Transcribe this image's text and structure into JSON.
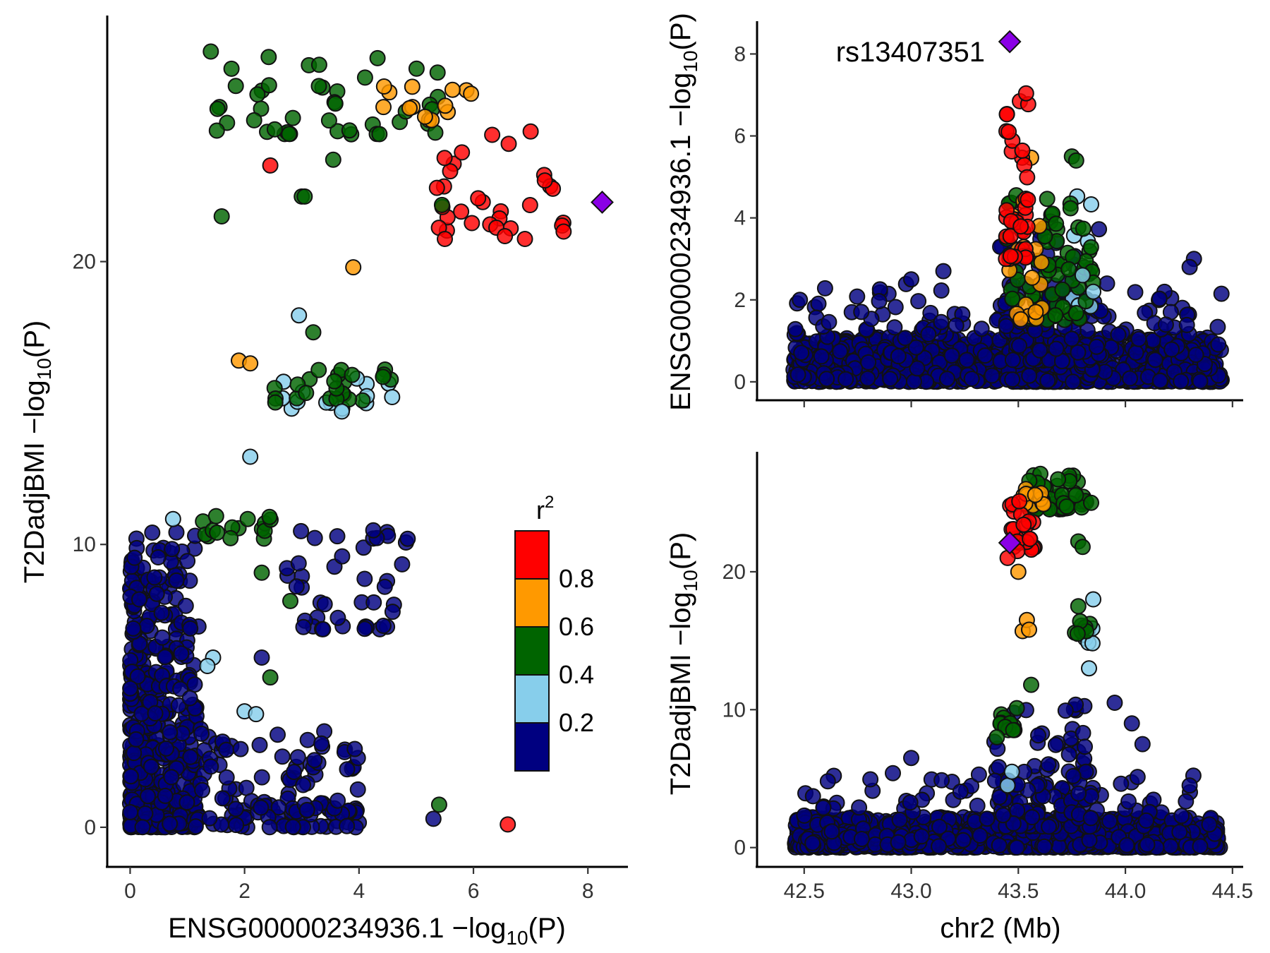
{
  "colors": {
    "r2_bins": [
      "#000080",
      "#87CEEB",
      "#006400",
      "#FF9900",
      "#FF0000"
    ],
    "lead": "#8A00E6"
  },
  "legend": {
    "title_base": "r",
    "title_sup": "2",
    "labels": [
      "0.2",
      "0.4",
      "0.6",
      "0.8"
    ]
  },
  "chart_data": [
    {
      "id": "scatter",
      "type": "scatter",
      "xlabel": {
        "main": "ENSG00000234936.1 −log",
        "sub": "10",
        "tail": "(P)"
      },
      "ylabel": {
        "main": "T2DadjBMI −log",
        "sub": "10",
        "tail": "(P)"
      },
      "xlim": [
        -0.4,
        8.7
      ],
      "ylim": [
        -1.4,
        28.7
      ],
      "xticks": [
        0,
        2,
        4,
        6,
        8
      ],
      "yticks": [
        0,
        10,
        20
      ],
      "bands": [
        {
          "r2": 0.1,
          "count": 420,
          "x": [
            0,
            1.2
          ],
          "y": [
            0,
            10.5
          ]
        },
        {
          "r2": 0.1,
          "count": 160,
          "x": [
            0.2,
            4.0
          ],
          "y": [
            0,
            3.5
          ]
        },
        {
          "r2": 0.1,
          "count": 40,
          "x": [
            2.6,
            4.9
          ],
          "y": [
            7.0,
            10.5
          ]
        },
        {
          "r2": 0.3,
          "count": 14,
          "x": [
            2.6,
            4.7
          ],
          "y": [
            14.8,
            16.0
          ]
        },
        {
          "r2": 0.5,
          "count": 45,
          "x": [
            1.2,
            5.5
          ],
          "y": [
            24.5,
            27.5
          ]
        },
        {
          "r2": 0.5,
          "count": 24,
          "x": [
            2.5,
            4.6
          ],
          "y": [
            15.0,
            16.3
          ]
        },
        {
          "r2": 0.5,
          "count": 16,
          "x": [
            1.1,
            2.6
          ],
          "y": [
            10.2,
            11.2
          ]
        },
        {
          "r2": 0.7,
          "count": 14,
          "x": [
            4.4,
            6.0
          ],
          "y": [
            25.0,
            26.5
          ]
        },
        {
          "r2": 0.9,
          "count": 28,
          "x": [
            5.3,
            7.6
          ],
          "y": [
            21.0,
            24.5
          ]
        }
      ],
      "points": [
        {
          "x": 1.6,
          "y": 21.6,
          "r2": 0.5
        },
        {
          "x": 3.0,
          "y": 22.3,
          "r2": 0.5
        },
        {
          "x": 3.05,
          "y": 22.3,
          "r2": 0.5
        },
        {
          "x": 3.55,
          "y": 23.6,
          "r2": 0.5
        },
        {
          "x": 2.45,
          "y": 23.4,
          "r2": 0.9
        },
        {
          "x": 3.9,
          "y": 19.8,
          "r2": 0.7
        },
        {
          "x": 2.95,
          "y": 18.1,
          "r2": 0.3
        },
        {
          "x": 3.2,
          "y": 17.5,
          "r2": 0.5
        },
        {
          "x": 1.9,
          "y": 16.5,
          "r2": 0.7
        },
        {
          "x": 2.1,
          "y": 16.4,
          "r2": 0.7
        },
        {
          "x": 3.7,
          "y": 14.7,
          "r2": 0.3
        },
        {
          "x": 2.1,
          "y": 13.1,
          "r2": 0.3
        },
        {
          "x": 0.75,
          "y": 10.9,
          "r2": 0.3
        },
        {
          "x": 1.45,
          "y": 6.0,
          "r2": 0.3
        },
        {
          "x": 1.35,
          "y": 5.7,
          "r2": 0.3
        },
        {
          "x": 2.0,
          "y": 4.1,
          "r2": 0.3
        },
        {
          "x": 2.2,
          "y": 4.0,
          "r2": 0.3
        },
        {
          "x": 2.45,
          "y": 5.3,
          "r2": 0.5
        },
        {
          "x": 2.3,
          "y": 9.0,
          "r2": 0.5
        },
        {
          "x": 2.8,
          "y": 8.0,
          "r2": 0.5
        },
        {
          "x": 4.25,
          "y": 10.5,
          "r2": 0.1
        },
        {
          "x": 4.85,
          "y": 10.2,
          "r2": 0.1
        },
        {
          "x": 4.45,
          "y": 8.5,
          "r2": 0.1
        },
        {
          "x": 2.3,
          "y": 6.0,
          "r2": 0.1
        },
        {
          "x": 5.4,
          "y": 0.8,
          "r2": 0.5
        },
        {
          "x": 5.3,
          "y": 0.3,
          "r2": 0.1
        },
        {
          "x": 6.6,
          "y": 0.1,
          "r2": 0.9
        },
        {
          "x": 7.0,
          "y": 24.6,
          "r2": 0.9
        },
        {
          "x": 6.4,
          "y": 21.2,
          "r2": 0.9
        },
        {
          "x": 6.55,
          "y": 20.9,
          "r2": 0.9
        },
        {
          "x": 6.9,
          "y": 20.8,
          "r2": 0.9
        },
        {
          "x": 5.5,
          "y": 20.8,
          "r2": 0.9
        },
        {
          "x": 5.45,
          "y": 22.0,
          "r2": 0.5
        }
      ],
      "lead": {
        "x": 8.25,
        "y": 22.1
      }
    },
    {
      "id": "locus_top",
      "type": "scatter",
      "xlabel": "",
      "ylabel": {
        "main": "ENSG00000234936.1 −log",
        "sub": "10",
        "tail": "(P)"
      },
      "xlim": [
        42.28,
        44.55
      ],
      "ylim": [
        -0.45,
        8.8
      ],
      "xticks": [
        42.5,
        43.0,
        43.5,
        44.0,
        44.5
      ],
      "yticks": [
        0,
        2,
        4,
        6,
        8
      ],
      "show_xtick_labels": false,
      "bands": [
        {
          "r2": 0.1,
          "count": 900,
          "x": [
            42.45,
            44.45
          ],
          "y": [
            0,
            1.1
          ]
        },
        {
          "r2": 0.1,
          "count": 240,
          "x": [
            42.45,
            44.45
          ],
          "y": [
            0,
            2.4
          ]
        },
        {
          "r2": 0.1,
          "count": 100,
          "x": [
            43.4,
            43.9
          ],
          "y": [
            0.5,
            3.8
          ]
        },
        {
          "r2": 0.3,
          "count": 10,
          "x": [
            43.75,
            43.85
          ],
          "y": [
            1.8,
            4.6
          ]
        },
        {
          "r2": 0.5,
          "count": 55,
          "x": [
            43.55,
            43.85
          ],
          "y": [
            1.5,
            4.6
          ]
        },
        {
          "r2": 0.5,
          "count": 12,
          "x": [
            43.43,
            43.5
          ],
          "y": [
            2.0,
            4.6
          ]
        },
        {
          "r2": 0.7,
          "count": 20,
          "x": [
            43.45,
            43.62
          ],
          "y": [
            1.5,
            6.0
          ]
        },
        {
          "r2": 0.9,
          "count": 38,
          "x": [
            43.44,
            43.55
          ],
          "y": [
            3.0,
            7.5
          ]
        }
      ],
      "points": [
        {
          "x": 42.48,
          "y": 2.0,
          "r2": 0.1
        },
        {
          "x": 44.32,
          "y": 3.0,
          "r2": 0.1
        },
        {
          "x": 44.3,
          "y": 2.8,
          "r2": 0.1
        },
        {
          "x": 43.0,
          "y": 2.5,
          "r2": 0.1
        },
        {
          "x": 43.15,
          "y": 2.7,
          "r2": 0.1
        },
        {
          "x": 43.75,
          "y": 5.5,
          "r2": 0.5
        },
        {
          "x": 43.77,
          "y": 5.4,
          "r2": 0.5
        },
        {
          "x": 43.85,
          "y": 2.2,
          "r2": 0.3
        },
        {
          "x": 43.8,
          "y": 2.6,
          "r2": 0.3
        }
      ],
      "lead": {
        "x": 43.46,
        "y": 8.3,
        "label": "rs13407351"
      }
    },
    {
      "id": "locus_bottom",
      "type": "scatter",
      "xlabel": "chr2 (Mb)",
      "ylabel": {
        "main": "T2DadjBMI −log",
        "sub": "10",
        "tail": "(P)"
      },
      "xlim": [
        42.28,
        44.55
      ],
      "ylim": [
        -1.4,
        28.7
      ],
      "xticks": [
        42.5,
        43.0,
        43.5,
        44.0,
        44.5
      ],
      "yticks": [
        0,
        10,
        20
      ],
      "show_xtick_labels": true,
      "bands": [
        {
          "r2": 0.1,
          "count": 900,
          "x": [
            42.45,
            44.45
          ],
          "y": [
            0,
            2.2
          ]
        },
        {
          "r2": 0.1,
          "count": 200,
          "x": [
            42.5,
            44.4
          ],
          "y": [
            0,
            5.5
          ]
        },
        {
          "r2": 0.1,
          "count": 110,
          "x": [
            43.38,
            43.85
          ],
          "y": [
            1.5,
            10.5
          ]
        },
        {
          "r2": 0.5,
          "count": 55,
          "x": [
            43.55,
            43.82
          ],
          "y": [
            24.5,
            27.2
          ]
        },
        {
          "r2": 0.5,
          "count": 12,
          "x": [
            43.4,
            43.5
          ],
          "y": [
            8.5,
            10.8
          ]
        },
        {
          "r2": 0.7,
          "count": 16,
          "x": [
            43.5,
            43.62
          ],
          "y": [
            24.8,
            26.0
          ]
        },
        {
          "r2": 0.9,
          "count": 24,
          "x": [
            43.45,
            43.58
          ],
          "y": [
            21.5,
            25.5
          ]
        },
        {
          "r2": 0.3,
          "count": 6,
          "x": [
            43.8,
            43.86
          ],
          "y": [
            14.8,
            16.2
          ]
        },
        {
          "r2": 0.5,
          "count": 8,
          "x": [
            43.76,
            43.84
          ],
          "y": [
            15.5,
            16.5
          ]
        }
      ],
      "points": [
        {
          "x": 43.45,
          "y": 21.0,
          "r2": 0.9
        },
        {
          "x": 43.5,
          "y": 20.0,
          "r2": 0.7
        },
        {
          "x": 43.52,
          "y": 15.7,
          "r2": 0.7
        },
        {
          "x": 43.54,
          "y": 16.5,
          "r2": 0.7
        },
        {
          "x": 43.55,
          "y": 15.8,
          "r2": 0.7
        },
        {
          "x": 43.78,
          "y": 22.2,
          "r2": 0.5
        },
        {
          "x": 43.8,
          "y": 21.8,
          "r2": 0.5
        },
        {
          "x": 43.84,
          "y": 25.0,
          "r2": 0.5
        },
        {
          "x": 43.85,
          "y": 18.0,
          "r2": 0.3
        },
        {
          "x": 43.83,
          "y": 13.0,
          "r2": 0.3
        },
        {
          "x": 43.78,
          "y": 17.5,
          "r2": 0.5
        },
        {
          "x": 43.56,
          "y": 11.8,
          "r2": 0.5
        },
        {
          "x": 43.95,
          "y": 10.5,
          "r2": 0.1
        },
        {
          "x": 44.08,
          "y": 7.5,
          "r2": 0.1
        },
        {
          "x": 44.03,
          "y": 9.0,
          "r2": 0.1
        },
        {
          "x": 43.0,
          "y": 6.5,
          "r2": 0.1
        },
        {
          "x": 44.3,
          "y": 4.5,
          "r2": 0.1
        },
        {
          "x": 43.45,
          "y": 4.5,
          "r2": 0.3
        },
        {
          "x": 43.47,
          "y": 5.5,
          "r2": 0.3
        },
        {
          "x": 43.4,
          "y": 8.0,
          "r2": 0.5
        }
      ],
      "lead": {
        "x": 43.46,
        "y": 22.1
      }
    }
  ]
}
